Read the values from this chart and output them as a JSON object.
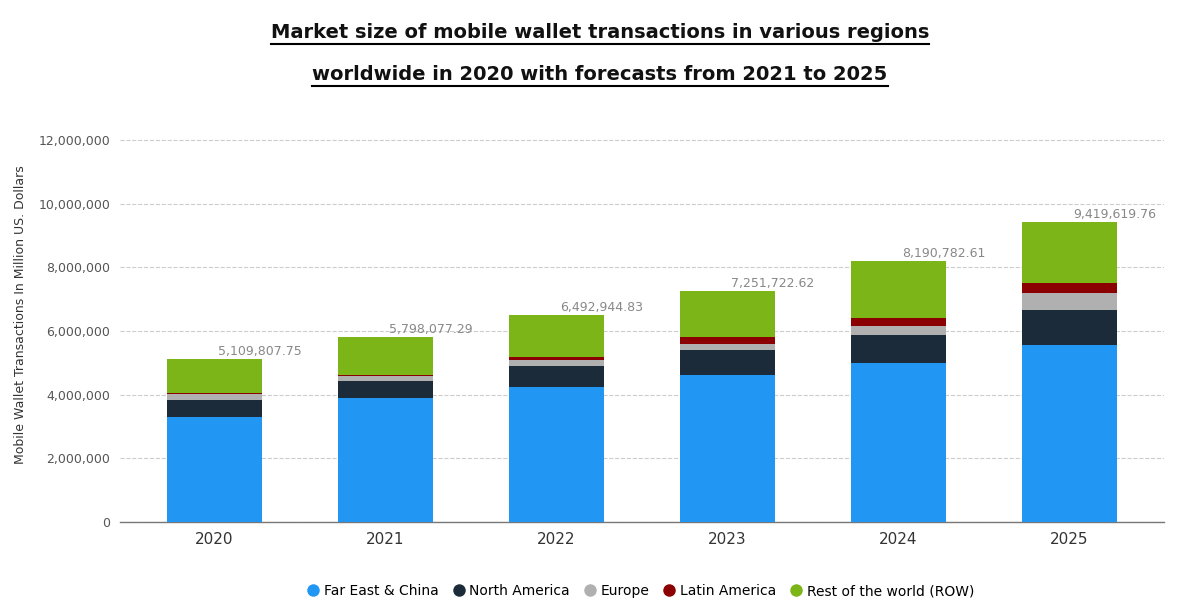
{
  "years": [
    2020,
    2021,
    2022,
    2023,
    2024,
    2025
  ],
  "totals": [
    5109807.75,
    5798077.29,
    6492944.83,
    7251722.62,
    8190782.61,
    9419619.76
  ],
  "segments": {
    "Far East & China": [
      3300000,
      3900000,
      4250000,
      4620000,
      5000000,
      5570000
    ],
    "North America": [
      530000,
      530000,
      650000,
      780000,
      870000,
      1100000
    ],
    "Europe": [
      200000,
      140000,
      190000,
      200000,
      300000,
      530000
    ],
    "Latin America": [
      10000,
      60000,
      80000,
      200000,
      250000,
      320000
    ],
    "Rest of the world (ROW)": [
      1069807.75,
      1168077.29,
      1322944.83,
      1451722.62,
      1770782.61,
      1899619.76
    ]
  },
  "colors": {
    "Far East & China": "#2196F3",
    "North America": "#1C2B3A",
    "Europe": "#B0B0B0",
    "Latin America": "#8B0000",
    "Rest of the world (ROW)": "#7CB518"
  },
  "title_line1": "Market size of mobile wallet transactions in various regions",
  "title_line2": "worldwide in 2020 with forecasts from 2021 to 2025",
  "ylabel": "Mobile Wallet Transactions In Million US. Dollars",
  "ylim": [
    0,
    13000000
  ],
  "yticks": [
    0,
    2000000,
    4000000,
    6000000,
    8000000,
    10000000,
    12000000
  ],
  "background_color": "#FFFFFF",
  "grid_color": "#AAAAAA",
  "annotation_color": "#888888",
  "annotation_fontsize": 9.0,
  "bar_width": 0.55
}
